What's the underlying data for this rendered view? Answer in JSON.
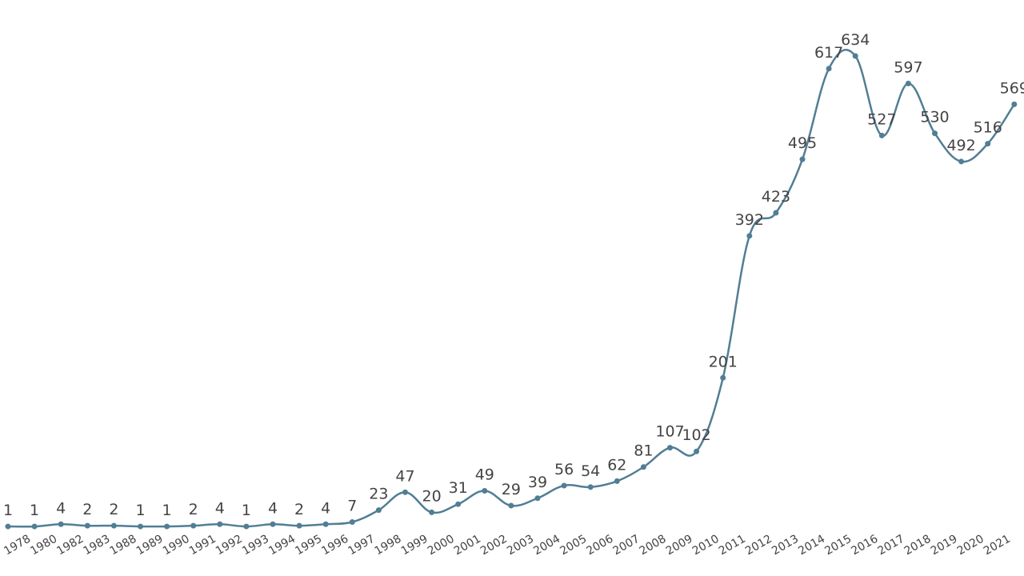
{
  "chart_data": {
    "type": "line",
    "categories": [
      null,
      "1978",
      "1980",
      "1982",
      "1983",
      "1988",
      "1989",
      "1990",
      "1991",
      "1992",
      "1993",
      "1994",
      "1995",
      "1996",
      "1997",
      "1998",
      "1999",
      "2000",
      "2001",
      "2002",
      "2003",
      "2004",
      "2005",
      "2006",
      "2007",
      "2008",
      "2009",
      "2010",
      "2011",
      "2012",
      "2013",
      "2014",
      "2015",
      "2016",
      "2017",
      "2018",
      "2019",
      "2020",
      "2021"
    ],
    "values": [
      1,
      1,
      4,
      2,
      2,
      1,
      1,
      2,
      4,
      1,
      4,
      2,
      4,
      7,
      23,
      47,
      20,
      31,
      49,
      29,
      39,
      56,
      54,
      62,
      81,
      107,
      102,
      201,
      392,
      423,
      495,
      617,
      634,
      527,
      597,
      530,
      492,
      516,
      569
    ],
    "color": "#517e94"
  }
}
